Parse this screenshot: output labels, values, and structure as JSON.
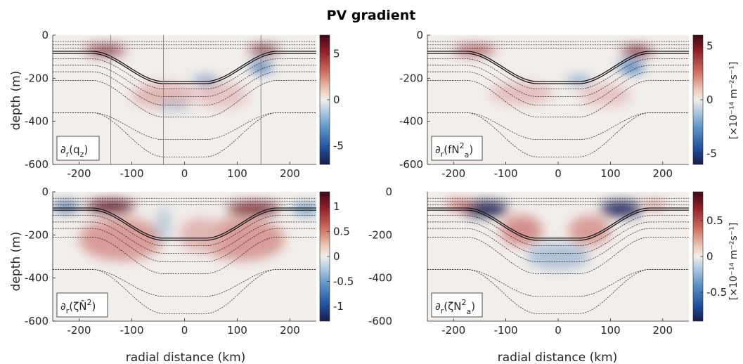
{
  "figure": {
    "title": "PV gradient",
    "xlabel": "radial distance (km)",
    "ylabel": "depth (m)"
  },
  "colors": {
    "negative_extreme": "#1a1b4d",
    "negative": "#2b6cb3",
    "neutral": "#f2eeea",
    "positive": "#c0504d",
    "positive_extreme": "#5c0a1c",
    "contour": "#1a1a1a",
    "vertical_marker": "#808080"
  },
  "chart_data": [
    {
      "type": "heatmap",
      "panel": "top-left",
      "label_parts": {
        "pre": "∂",
        "sub_r": "r",
        "open": "(q",
        "sub": "z",
        "close": ")"
      },
      "x_ticks": [
        -200,
        -100,
        0,
        100,
        200
      ],
      "y_ticks": [
        0,
        -200,
        -400,
        -600
      ],
      "xlim": [
        -250,
        250
      ],
      "ylim": [
        -600,
        0
      ],
      "colorbar_ticks": [
        5,
        0,
        -5
      ],
      "colorbar_range": [
        -7,
        7
      ],
      "colorbar_unit_shared": "[×10⁻¹⁴ m⁻²s⁻¹]",
      "vertical_lines_x": [
        -140,
        -40,
        145
      ],
      "blobs": [
        {
          "x": -150,
          "y": -70,
          "rx": 38,
          "ry": 22,
          "v": 0.85
        },
        {
          "x": 150,
          "y": -70,
          "rx": 28,
          "ry": 20,
          "v": 0.9
        },
        {
          "x": 145,
          "y": -150,
          "rx": 22,
          "ry": 22,
          "v": -0.6
        },
        {
          "x": 40,
          "y": -210,
          "rx": 25,
          "ry": 18,
          "v": -0.4
        },
        {
          "x": -40,
          "y": -280,
          "rx": 60,
          "ry": 60,
          "v": 0.2
        },
        {
          "x": 70,
          "y": -280,
          "rx": 50,
          "ry": 60,
          "v": 0.15
        },
        {
          "x": -20,
          "y": -330,
          "rx": 30,
          "ry": 20,
          "v": -0.2
        }
      ]
    },
    {
      "type": "heatmap",
      "panel": "top-right",
      "label_parts": {
        "pre": "∂",
        "sub_r": "r",
        "open": "(fN",
        "sup": "2",
        "sub": "a",
        "close": ")"
      },
      "x_ticks": [
        -200,
        -100,
        0,
        100,
        200
      ],
      "y_ticks": [
        0,
        -200,
        -400,
        -600
      ],
      "xlim": [
        -250,
        250
      ],
      "ylim": [
        -600,
        0
      ],
      "colorbar_ticks": [
        5,
        0,
        -5
      ],
      "colorbar_range": [
        -6,
        6
      ],
      "colorbar_unit": "[×10⁻¹⁴ m⁻²s⁻¹]",
      "blobs": [
        {
          "x": -160,
          "y": -70,
          "rx": 40,
          "ry": 20,
          "v": 0.7
        },
        {
          "x": 150,
          "y": -75,
          "rx": 30,
          "ry": 22,
          "v": 0.9
        },
        {
          "x": 140,
          "y": -150,
          "rx": 25,
          "ry": 25,
          "v": -0.55
        },
        {
          "x": 40,
          "y": -210,
          "rx": 25,
          "ry": 18,
          "v": -0.35
        },
        {
          "x": -70,
          "y": -270,
          "rx": 60,
          "ry": 50,
          "v": 0.18
        },
        {
          "x": 90,
          "y": -280,
          "rx": 50,
          "ry": 50,
          "v": 0.15
        }
      ]
    },
    {
      "type": "heatmap",
      "panel": "bottom-left",
      "label_parts": {
        "pre": "∂",
        "sub_r": "r",
        "open": "(ζN̄",
        "sup": "2",
        "close": ")"
      },
      "x_ticks": [
        -200,
        -100,
        0,
        100,
        200
      ],
      "y_ticks": [
        0,
        -200,
        -400,
        -600
      ],
      "xlim": [
        -250,
        250
      ],
      "ylim": [
        -600,
        0
      ],
      "colorbar_ticks": [
        1,
        0.5,
        0,
        -0.5,
        -1
      ],
      "colorbar_range": [
        -1.3,
        1.3
      ],
      "blobs": [
        {
          "x": -140,
          "y": -70,
          "rx": 45,
          "ry": 30,
          "v": 1.0
        },
        {
          "x": 130,
          "y": -80,
          "rx": 50,
          "ry": 30,
          "v": 0.9
        },
        {
          "x": -225,
          "y": -70,
          "rx": 25,
          "ry": 20,
          "v": -0.7
        },
        {
          "x": 230,
          "y": -80,
          "rx": 25,
          "ry": 20,
          "v": -0.5
        },
        {
          "x": -120,
          "y": -220,
          "rx": 80,
          "ry": 100,
          "v": 0.3
        },
        {
          "x": 110,
          "y": -220,
          "rx": 80,
          "ry": 100,
          "v": 0.3
        },
        {
          "x": -40,
          "y": -150,
          "rx": 15,
          "ry": 80,
          "v": -0.15
        },
        {
          "x": 30,
          "y": -200,
          "rx": 40,
          "ry": 80,
          "v": 0.2
        }
      ]
    },
    {
      "type": "heatmap",
      "panel": "bottom-right",
      "label_parts": {
        "pre": "∂",
        "sub_r": "r",
        "open": "(ζN",
        "sup": "2",
        "sub": "a",
        "close": ")"
      },
      "x_ticks": [
        -200,
        -100,
        0,
        100,
        200
      ],
      "y_ticks": [
        0,
        -200,
        -400,
        -600
      ],
      "xlim": [
        -250,
        250
      ],
      "ylim": [
        -600,
        0
      ],
      "colorbar_ticks": [
        0.5,
        0,
        -0.5
      ],
      "colorbar_range": [
        -0.9,
        0.9
      ],
      "colorbar_unit": "[×10⁻¹⁴ m⁻²s⁻¹]",
      "blobs": [
        {
          "x": -140,
          "y": -80,
          "rx": 45,
          "ry": 35,
          "v": -1.0
        },
        {
          "x": 120,
          "y": -80,
          "rx": 40,
          "ry": 35,
          "v": -0.95
        },
        {
          "x": -190,
          "y": -60,
          "rx": 25,
          "ry": 20,
          "v": 0.5
        },
        {
          "x": 185,
          "y": -60,
          "rx": 20,
          "ry": 15,
          "v": 0.45
        },
        {
          "x": -70,
          "y": -180,
          "rx": 40,
          "ry": 70,
          "v": 0.35
        },
        {
          "x": 60,
          "y": -180,
          "rx": 40,
          "ry": 70,
          "v": 0.3
        },
        {
          "x": 0,
          "y": -300,
          "rx": 60,
          "ry": 60,
          "v": -0.2
        }
      ]
    }
  ],
  "contour_layers": {
    "surface_lines": [
      -30,
      -45,
      -60
    ],
    "upper": [
      {
        "out": -75,
        "in": -215,
        "bold": true
      },
      {
        "out": -85,
        "in": -225,
        "bold": true
      },
      {
        "out": -110,
        "in": -250
      },
      {
        "out": -140,
        "in": -285
      },
      {
        "out": -170,
        "in": -325
      }
    ],
    "deep": [
      {
        "out": -210,
        "in": -380
      },
      {
        "out": -360,
        "in": -485
      },
      {
        "out": -360,
        "in": -565
      }
    ]
  }
}
